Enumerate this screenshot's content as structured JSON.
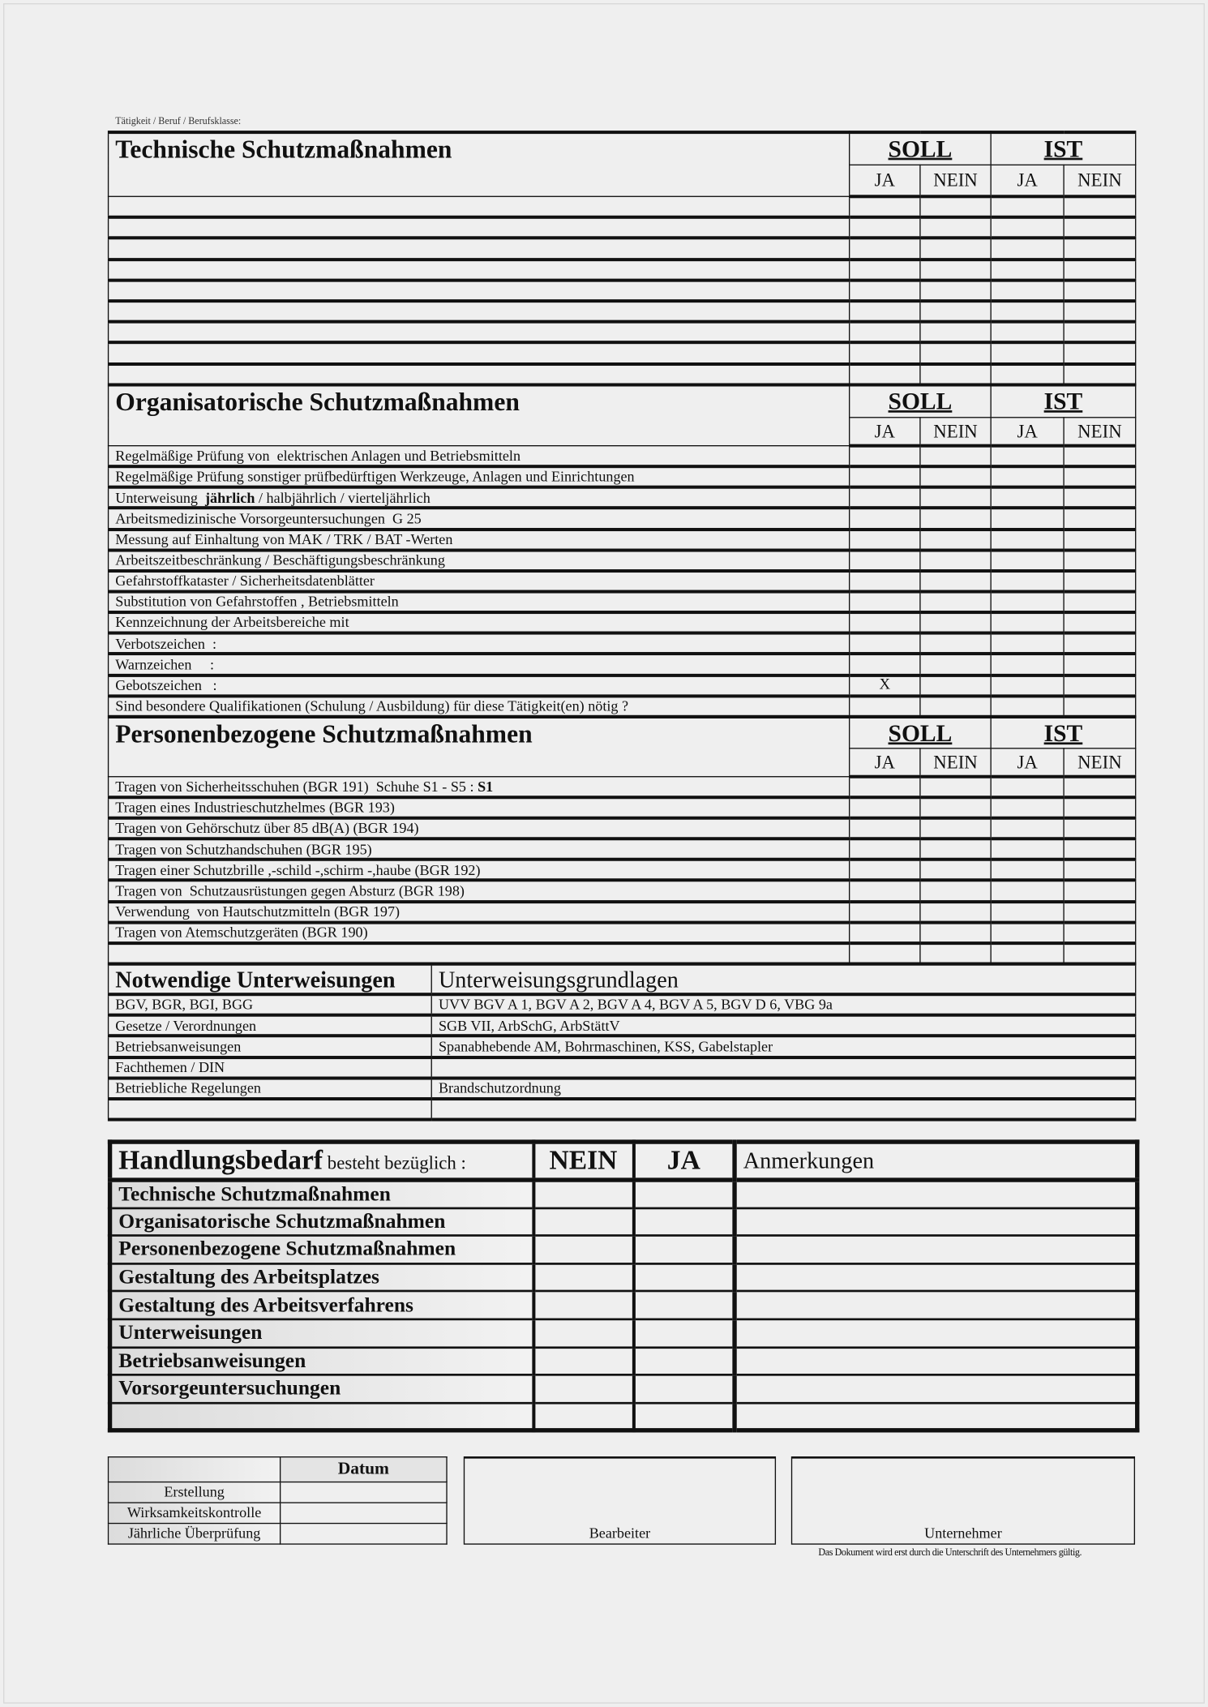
{
  "job_label": "Tätigkeit / Beruf / Berufsklasse:",
  "soll": "SOLL",
  "ist": "IST",
  "ja": "JA",
  "nein": "NEIN",
  "technical": {
    "title": "Technische Schutzmaßnahmen",
    "rows": [
      "",
      "",
      "",
      "",
      "",
      "",
      "",
      "",
      ""
    ]
  },
  "organisational": {
    "title": "Organisatorische Schutzmaßnahmen",
    "rows": [
      {
        "text": "Regelmäßige Prüfung von  elektrischen Anlagen und Betriebsmitteln",
        "soll_ja": ""
      },
      {
        "text": "Regelmäßige Prüfung sonstiger prüfbedürftigen Werkzeuge, Anlagen und Einrichtungen",
        "soll_ja": ""
      },
      {
        "text": "Unterweisung  ",
        "bold": "jährlich",
        "rest": " / halbjährlich / vierteljährlich",
        "soll_ja": ""
      },
      {
        "text": "Arbeitsmedizinische Vorsorgeuntersuchungen  G 25",
        "soll_ja": ""
      },
      {
        "text": "Messung auf Einhaltung von MAK / TRK / BAT -Werten",
        "soll_ja": ""
      },
      {
        "text": "Arbeitszeitbeschränkung / Beschäftigungsbeschränkung",
        "soll_ja": ""
      },
      {
        "text": "Gefahrstoffkataster / Sicherheitsdatenblätter",
        "soll_ja": ""
      },
      {
        "text": "Substitution von Gefahrstoffen , Betriebsmitteln",
        "soll_ja": ""
      },
      {
        "text": "Kennzeichnung der Arbeitsbereiche mit",
        "soll_ja": ""
      },
      {
        "text": "Verbotszeichen  :",
        "soll_ja": ""
      },
      {
        "text": "Warnzeichen     :",
        "soll_ja": ""
      },
      {
        "text": "Gebotszeichen   :",
        "soll_ja": "X"
      },
      {
        "text": "Sind besondere Qualifikationen (Schulung / Ausbildung) für diese Tätigkeit(en) nötig ?",
        "soll_ja": ""
      }
    ]
  },
  "personal": {
    "title": "Personenbezogene Schutzmaßnahmen",
    "rows": [
      {
        "text": "Tragen von Sicherheitsschuhen (BGR 191)  Schuhe S1 - S5 : ",
        "bold": "S1"
      },
      {
        "text": "Tragen eines Industrieschutzhelmes (BGR 193)"
      },
      {
        "text": "Tragen von Gehörschutz über 85 dB(A) (BGR 194)"
      },
      {
        "text": "Tragen von Schutzhandschuhen (BGR 195)"
      },
      {
        "text": "Tragen einer Schutzbrille ,-schild -,schirm -,haube (BGR 192)"
      },
      {
        "text": "Tragen von  Schutzausrüstungen gegen Absturz (BGR 198)"
      },
      {
        "text": "Verwendung  von Hautschutzmitteln (BGR 197)"
      },
      {
        "text": "Tragen von Atemschutzgeräten (BGR 190)"
      },
      {
        "text": ""
      }
    ]
  },
  "instructions": {
    "title": "Notwendige Unterweisungen",
    "basis_title": "Unterweisungsgrundlagen",
    "rows": [
      {
        "label": "BGV, BGR, BGI, BGG",
        "value": "UVV BGV A 1, BGV A 2, BGV A 4, BGV A 5, BGV D 6, VBG 9a"
      },
      {
        "label": "Gesetze / Verordnungen",
        "value": "SGB VII, ArbSchG, ArbStättV"
      },
      {
        "label": "Betriebsanweisungen",
        "value": "Spanabhebende AM, Bohrmaschinen, KSS, Gabelstapler"
      },
      {
        "label": "Fachthemen / DIN",
        "value": ""
      },
      {
        "label": "Betriebliche Regelungen",
        "value": "Brandschutzordnung"
      },
      {
        "label": "",
        "value": ""
      }
    ]
  },
  "action": {
    "title_bold": "Handlungsbedarf",
    "title_rest": " besteht bezüglich :",
    "nein": "NEIN",
    "ja": "JA",
    "remarks": "Anmerkungen",
    "rows": [
      "Technische Schutzmaßnahmen",
      "Organisatorische Schutzmaßnahmen",
      "Personenbezogene Schutzmaßnahmen",
      "Gestaltung des Arbeitsplatzes",
      "Gestaltung des Arbeitsverfahrens",
      "Unterweisungen",
      "Betriebsanweisungen",
      "Vorsorgeuntersuchungen",
      ""
    ]
  },
  "footer": {
    "date_header": "Datum",
    "rows": [
      "Erstellung",
      "Wirksamkeitskontrolle",
      "Jährliche Überprüfung"
    ],
    "editor": "Bearbeiter",
    "company": "Unternehmer",
    "note": "Das Dokument wird erst durch die Unterschrift des Unternehmers gültig."
  }
}
